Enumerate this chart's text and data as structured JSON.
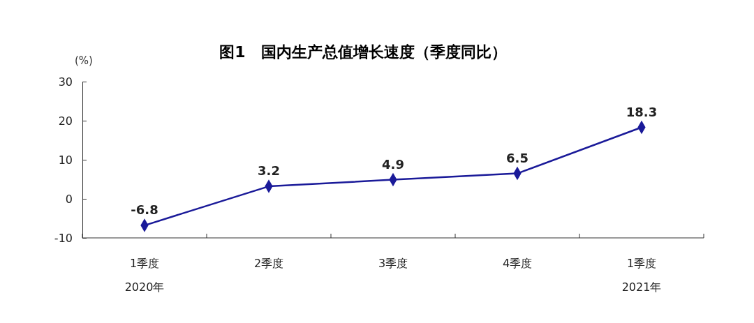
{
  "chart_data": {
    "type": "line",
    "title": "图1　国内生产总值增长速度（季度同比）",
    "ylabel": "(%)",
    "categories": [
      "1季度\n2020年",
      "2季度",
      "3季度",
      "4季度",
      "1季度\n2021年"
    ],
    "series": [
      {
        "color": "#1a1a99",
        "values": [
          -6.8,
          3.2,
          4.9,
          6.5,
          18.3
        ]
      }
    ],
    "ylim": [
      -10,
      30
    ],
    "yticks": [
      -10,
      0,
      10,
      20,
      30
    ],
    "grid": false,
    "marker": "diamond",
    "line_style": "solid",
    "data_labels": true
  }
}
